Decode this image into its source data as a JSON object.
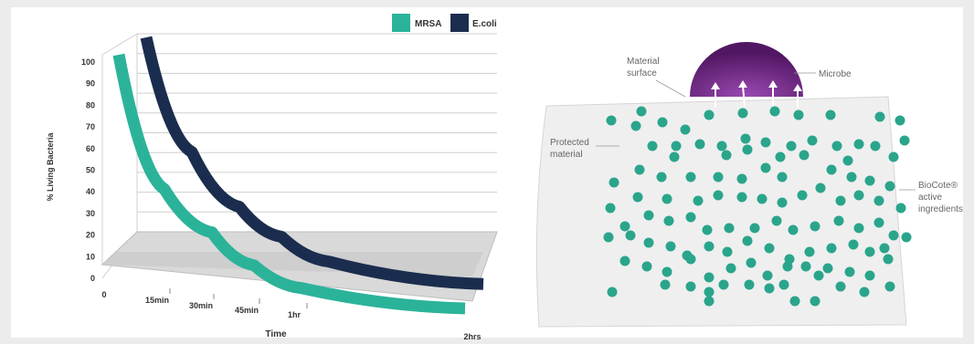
{
  "chart_data": {
    "type": "line",
    "title": "",
    "xlabel": "Time",
    "ylabel": "% Living Bacteria",
    "ylim": [
      0,
      100
    ],
    "yticks": [
      "0",
      "10",
      "20",
      "30",
      "40",
      "50",
      "60",
      "70",
      "80",
      "90",
      "100"
    ],
    "categories": [
      "0",
      "15min",
      "30min",
      "45min",
      "1hr",
      "2hrs"
    ],
    "legend_position": "top-right",
    "grid": true,
    "series": [
      {
        "name": "MRSA",
        "color": "#2bb39a",
        "values": [
          100,
          47,
          30,
          17,
          8,
          0
        ]
      },
      {
        "name": "E.coli",
        "color": "#1b2d4e",
        "values": [
          100,
          54,
          32,
          20,
          10,
          1
        ]
      }
    ]
  },
  "diagram": {
    "labels": {
      "material_surface": [
        "Material",
        "surface"
      ],
      "microbe": "Microbe",
      "protected_material": [
        "Protected",
        "material"
      ],
      "biocote": [
        "BioCote®",
        "active",
        "ingredients"
      ]
    },
    "colors": {
      "dot": "#2aa58c",
      "microbe_dark": "#5b1a6e",
      "microbe_light": "#8a3aa0",
      "material": "#efefef"
    }
  }
}
